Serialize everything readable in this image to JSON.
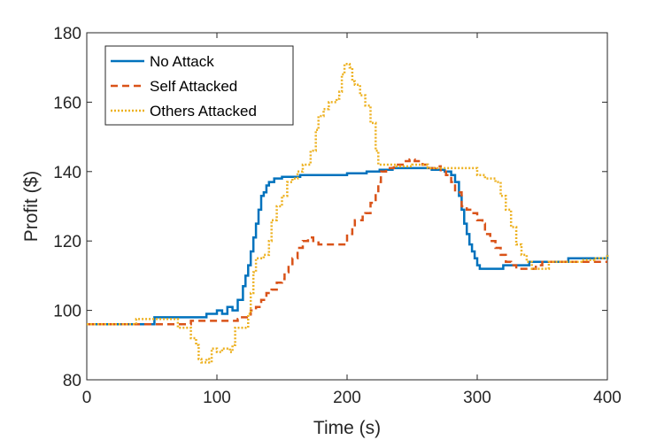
{
  "chart_data": {
    "type": "line",
    "title": "",
    "xlabel": "Time (s)",
    "ylabel": "Profit ($)",
    "xlim": [
      0,
      400
    ],
    "ylim": [
      80,
      180
    ],
    "xticks": [
      0,
      100,
      200,
      300,
      400
    ],
    "yticks": [
      80,
      100,
      120,
      140,
      160,
      180
    ],
    "grid": false,
    "legend_position": "top-left",
    "series": [
      {
        "name": "No Attack",
        "color": "#0072BD",
        "dash": "solid",
        "points": [
          [
            0,
            96
          ],
          [
            52,
            96
          ],
          [
            52,
            98
          ],
          [
            90,
            98
          ],
          [
            92,
            99
          ],
          [
            98,
            99
          ],
          [
            100,
            100
          ],
          [
            104,
            99
          ],
          [
            108,
            101
          ],
          [
            112,
            100
          ],
          [
            116,
            103
          ],
          [
            118,
            103
          ],
          [
            120,
            107
          ],
          [
            122,
            110
          ],
          [
            124,
            113
          ],
          [
            126,
            117
          ],
          [
            128,
            121
          ],
          [
            130,
            125
          ],
          [
            132,
            129
          ],
          [
            134,
            133
          ],
          [
            136,
            134
          ],
          [
            138,
            136
          ],
          [
            140,
            137
          ],
          [
            144,
            138
          ],
          [
            150,
            138.5
          ],
          [
            160,
            138.5
          ],
          [
            164,
            139
          ],
          [
            180,
            139
          ],
          [
            200,
            139.5
          ],
          [
            215,
            140
          ],
          [
            225,
            140.5
          ],
          [
            235,
            141
          ],
          [
            255,
            141
          ],
          [
            265,
            140.5
          ],
          [
            275,
            140
          ],
          [
            280,
            139
          ],
          [
            283,
            137
          ],
          [
            286,
            133
          ],
          [
            288,
            129
          ],
          [
            290,
            125
          ],
          [
            292,
            122
          ],
          [
            294,
            119
          ],
          [
            296,
            117
          ],
          [
            298,
            115
          ],
          [
            300,
            113
          ],
          [
            302,
            112
          ],
          [
            315,
            112
          ],
          [
            320,
            113
          ],
          [
            335,
            113
          ],
          [
            340,
            114
          ],
          [
            350,
            114
          ],
          [
            360,
            114
          ],
          [
            370,
            115
          ],
          [
            385,
            115
          ],
          [
            400,
            116
          ]
        ]
      },
      {
        "name": "Self Attacked",
        "color": "#D95319",
        "dash": "dashed",
        "points": [
          [
            0,
            96
          ],
          [
            60,
            96
          ],
          [
            78,
            96
          ],
          [
            80,
            97
          ],
          [
            110,
            97
          ],
          [
            116,
            97.5
          ],
          [
            118,
            98
          ],
          [
            124,
            98
          ],
          [
            126,
            100
          ],
          [
            130,
            101
          ],
          [
            134,
            103
          ],
          [
            138,
            105
          ],
          [
            142,
            106
          ],
          [
            146,
            108
          ],
          [
            150,
            109
          ],
          [
            152,
            111
          ],
          [
            155,
            113
          ],
          [
            158,
            115
          ],
          [
            162,
            118
          ],
          [
            166,
            120
          ],
          [
            170,
            121
          ],
          [
            174,
            120
          ],
          [
            178,
            119
          ],
          [
            185,
            119
          ],
          [
            196,
            119
          ],
          [
            200,
            122
          ],
          [
            204,
            124
          ],
          [
            206,
            126
          ],
          [
            212,
            127
          ],
          [
            214,
            128
          ],
          [
            218,
            131
          ],
          [
            222,
            134
          ],
          [
            224,
            137
          ],
          [
            226,
            140
          ],
          [
            230,
            141
          ],
          [
            236,
            142
          ],
          [
            240,
            142
          ],
          [
            244,
            143
          ],
          [
            248,
            143.5
          ],
          [
            252,
            143
          ],
          [
            258,
            142
          ],
          [
            262,
            141
          ],
          [
            268,
            141.5
          ],
          [
            272,
            140
          ],
          [
            276,
            139
          ],
          [
            280,
            137
          ],
          [
            283,
            134
          ],
          [
            288,
            130
          ],
          [
            292,
            129
          ],
          [
            296,
            128
          ],
          [
            300,
            126
          ],
          [
            304,
            125
          ],
          [
            306,
            122
          ],
          [
            310,
            120
          ],
          [
            314,
            118
          ],
          [
            318,
            116
          ],
          [
            322,
            114
          ],
          [
            326,
            113
          ],
          [
            330,
            112
          ],
          [
            340,
            112
          ],
          [
            345,
            113
          ],
          [
            350,
            114
          ],
          [
            370,
            114
          ],
          [
            384,
            114
          ],
          [
            390,
            114
          ],
          [
            400,
            114
          ]
        ]
      },
      {
        "name": "Others Attacked",
        "color": "#EDB120",
        "dash": "dotted",
        "points": [
          [
            0,
            96
          ],
          [
            38,
            96
          ],
          [
            38,
            97.5
          ],
          [
            68,
            97.5
          ],
          [
            70,
            95
          ],
          [
            78,
            95
          ],
          [
            80,
            92
          ],
          [
            84,
            90
          ],
          [
            86,
            86
          ],
          [
            88,
            85
          ],
          [
            92,
            86
          ],
          [
            94,
            85
          ],
          [
            96,
            89
          ],
          [
            100,
            88
          ],
          [
            104,
            89
          ],
          [
            110,
            88
          ],
          [
            112,
            90
          ],
          [
            114,
            95
          ],
          [
            120,
            95
          ],
          [
            124,
            99
          ],
          [
            126,
            105
          ],
          [
            128,
            111
          ],
          [
            130,
            115
          ],
          [
            136,
            116
          ],
          [
            140,
            120
          ],
          [
            142,
            126
          ],
          [
            146,
            130
          ],
          [
            150,
            133
          ],
          [
            154,
            137
          ],
          [
            158,
            138
          ],
          [
            162,
            140
          ],
          [
            166,
            142
          ],
          [
            172,
            146
          ],
          [
            176,
            152
          ],
          [
            178,
            156
          ],
          [
            182,
            158
          ],
          [
            186,
            160
          ],
          [
            192,
            161
          ],
          [
            194,
            163
          ],
          [
            196,
            168
          ],
          [
            198,
            171
          ],
          [
            202,
            170
          ],
          [
            204,
            166
          ],
          [
            206,
            165
          ],
          [
            210,
            162
          ],
          [
            214,
            159
          ],
          [
            218,
            154
          ],
          [
            222,
            146
          ],
          [
            224,
            142
          ],
          [
            232,
            142
          ],
          [
            238,
            141.5
          ],
          [
            244,
            141.5
          ],
          [
            250,
            142
          ],
          [
            256,
            142
          ],
          [
            262,
            141
          ],
          [
            270,
            141
          ],
          [
            276,
            141
          ],
          [
            290,
            141
          ],
          [
            298,
            141
          ],
          [
            300,
            139
          ],
          [
            306,
            138
          ],
          [
            314,
            137
          ],
          [
            318,
            133
          ],
          [
            322,
            129
          ],
          [
            326,
            124
          ],
          [
            330,
            119
          ],
          [
            334,
            116
          ],
          [
            338,
            114
          ],
          [
            342,
            112
          ],
          [
            350,
            112
          ],
          [
            355,
            114
          ],
          [
            370,
            114
          ],
          [
            380,
            114.5
          ],
          [
            390,
            115
          ],
          [
            400,
            116
          ]
        ]
      }
    ]
  }
}
